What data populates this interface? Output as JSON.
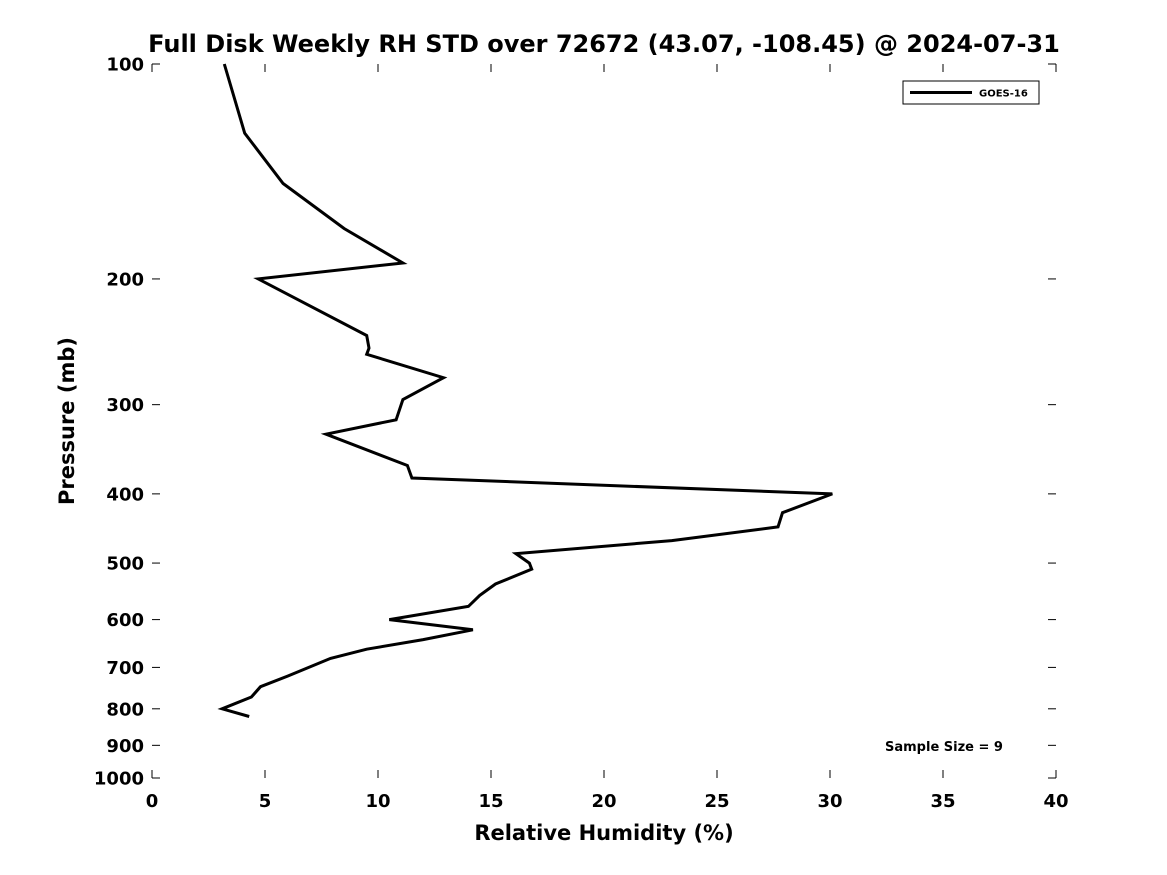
{
  "chart_data": {
    "type": "line",
    "title": "Full Disk Weekly RH STD over 72672 (43.07, -108.45) @ 2024-07-31",
    "xlabel": "Relative Humidity (%)",
    "ylabel": "Pressure (mb)",
    "xlim": [
      0,
      40
    ],
    "ylim": [
      100,
      1000
    ],
    "yscale": "log",
    "y_reversed": true,
    "grid": false,
    "legend_position": "top-right",
    "x_ticks": [
      0,
      5,
      10,
      15,
      20,
      25,
      30,
      35,
      40
    ],
    "x_tick_labels": [
      "0",
      "5",
      "10",
      "15",
      "20",
      "25",
      "30",
      "35",
      "40"
    ],
    "y_ticks": [
      100,
      200,
      300,
      400,
      500,
      600,
      700,
      800,
      900,
      1000
    ],
    "y_tick_labels": [
      "100",
      "200",
      "300",
      "400",
      "500",
      "600",
      "700",
      "800",
      "900",
      "1000"
    ],
    "series": [
      {
        "name": "GOES-16",
        "color": "#000000",
        "x": [
          3.2,
          4.1,
          5.8,
          8.5,
          11.1,
          4.7,
          9.5,
          9.6,
          9.5,
          12.9,
          11.1,
          10.8,
          7.7,
          11.3,
          11.5,
          30.1,
          27.9,
          27.7,
          23.0,
          16.1,
          16.7,
          16.8,
          15.2,
          14.5,
          14.0,
          10.5,
          14.2,
          12.0,
          9.5,
          7.9,
          6.0,
          4.8,
          4.4,
          3.1,
          4.3
        ],
        "y": [
          100,
          125,
          147,
          170,
          190,
          200,
          240,
          250,
          255,
          275,
          295,
          315,
          330,
          365,
          380,
          400,
          425,
          445,
          465,
          485,
          500,
          510,
          535,
          555,
          575,
          600,
          620,
          640,
          660,
          680,
          720,
          745,
          770,
          800,
          820
        ]
      }
    ],
    "annotations": [
      "Sample Size = 9"
    ]
  }
}
